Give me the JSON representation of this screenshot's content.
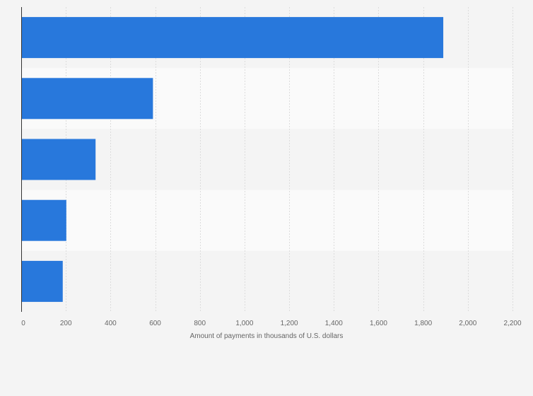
{
  "chart_data": {
    "type": "bar",
    "orientation": "horizontal",
    "title": "",
    "categories": [
      "",
      "",
      "",
      "",
      ""
    ],
    "values": [
      1890,
      590,
      333,
      202,
      186
    ],
    "xlabel": "Amount of payments in thousands of U.S. dollars",
    "ylabel": "",
    "xlim": [
      0,
      2200
    ],
    "x_ticks": [
      0,
      200,
      400,
      600,
      800,
      1000,
      1200,
      1400,
      1600,
      1800,
      2000,
      2200
    ],
    "x_tick_labels": [
      "0",
      "200",
      "400",
      "600",
      "800",
      "1,000",
      "1,200",
      "1,400",
      "1,600",
      "1,800",
      "2,000",
      "2,200"
    ],
    "grid": "vertical",
    "bar_color": "#2878dc",
    "band_colors": [
      "#f4f4f4",
      "#fafafa"
    ],
    "background_color": "#f4f4f4"
  }
}
